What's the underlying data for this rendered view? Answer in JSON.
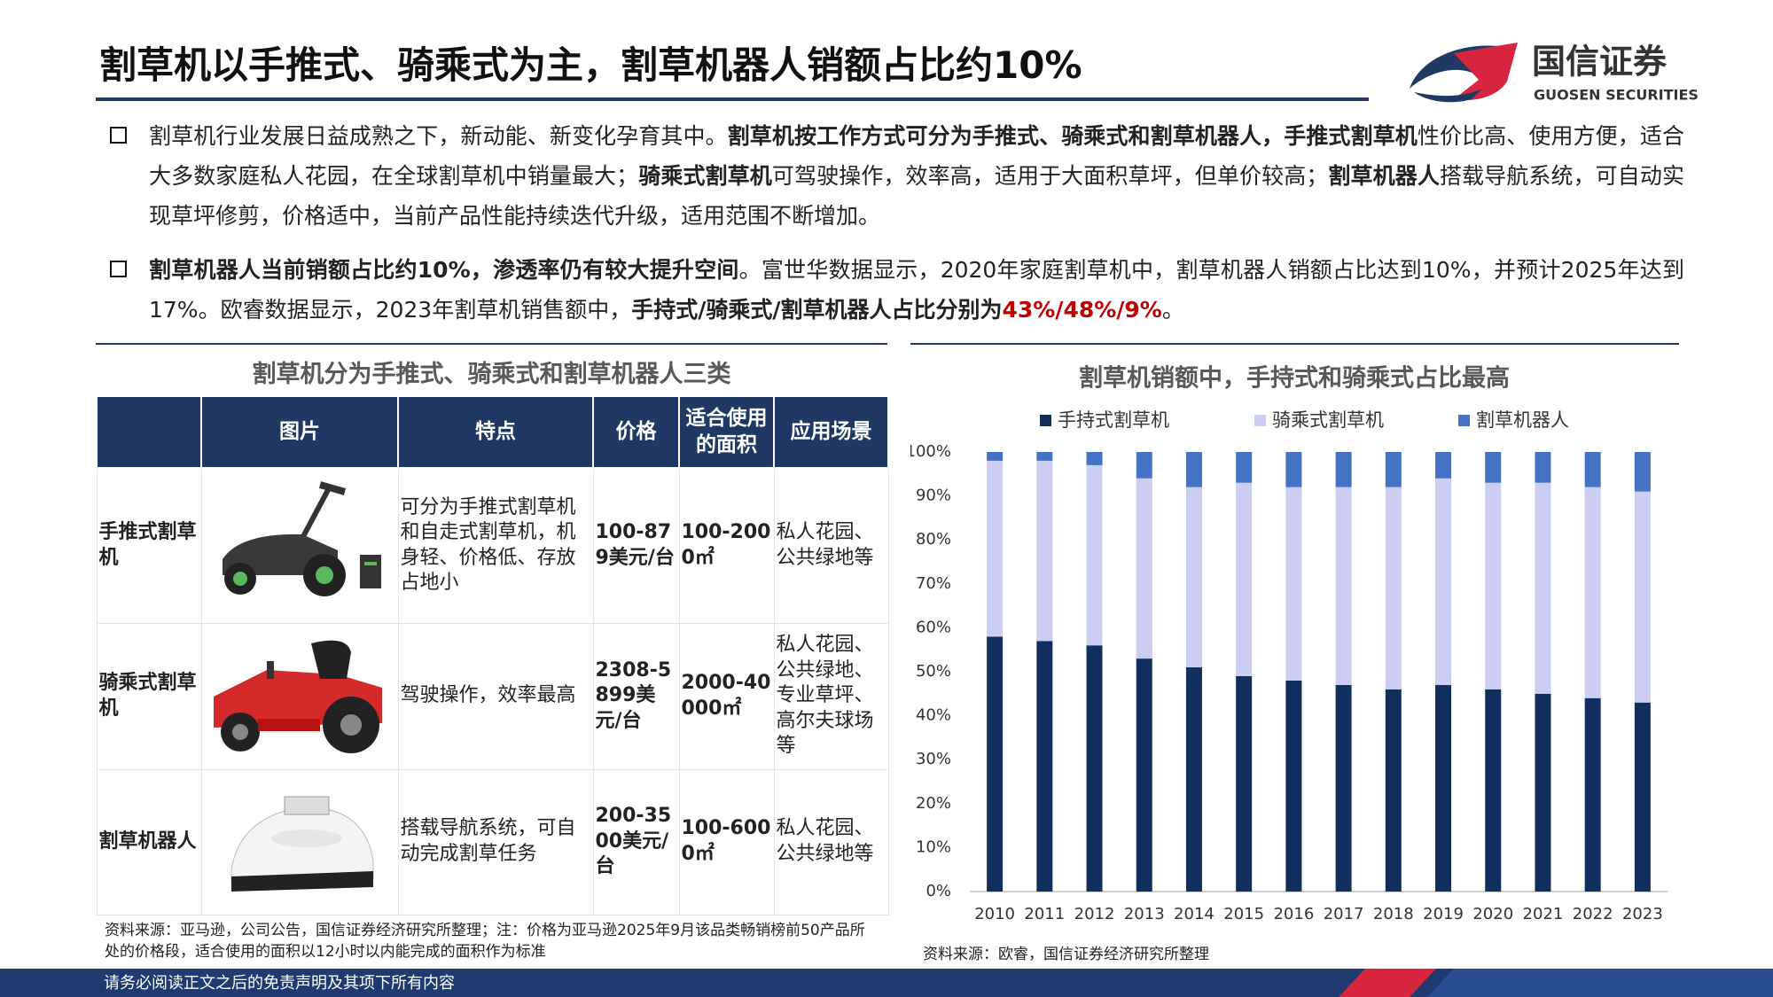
{
  "header": {
    "title": "割草机以手推式、骑乘式为主，割草机器人销额占比约10%",
    "logo_cn": "国信证券",
    "logo_en": "GUOSEN SECURITIES"
  },
  "bullets": [
    [
      {
        "text": "割草机行业发展日益成熟之下，新动能、新变化孕育其中。",
        "bold": false
      },
      {
        "text": "割草机按工作方式可分为手推式、骑乘式和割草机器人，手推式割草机",
        "bold": true
      },
      {
        "text": "性价比高、使用方便，适合大多数家庭私人花园，在全球割草机中销量最大；",
        "bold": false
      },
      {
        "text": "骑乘式割草机",
        "bold": true
      },
      {
        "text": "可驾驶操作，效率高，适用于大面积草坪，但单价较高；",
        "bold": false
      },
      {
        "text": "割草机器人",
        "bold": true
      },
      {
        "text": "搭载导航系统，可自动实现草坪修剪，价格适中，当前产品性能持续迭代升级，适用范围不断增加。",
        "bold": false
      }
    ],
    [
      {
        "text": "割草机器人当前销额占比约10%，渗透率仍有较大提升空间",
        "bold": true
      },
      {
        "text": "。富世华数据显示，2020年家庭割草机中，割草机器人销额占比达到10%，并预计2025年达到17%。欧睿数据显示，2023年割草机销售额中，",
        "bold": false
      },
      {
        "text": "手持式/骑乘式/割草机器人占比分别为",
        "bold": true
      },
      {
        "text": "43%/48%/9%",
        "bold": true,
        "color": "#c00000"
      },
      {
        "text": "。",
        "bold": false
      }
    ]
  ],
  "table": {
    "title": "割草机分为手推式、骑乘式和割草机器人三类",
    "columns": [
      "图片",
      "特点",
      "价格",
      "适合使用的面积",
      "应用场景"
    ],
    "rows": [
      [
        "手推式割草机",
        "可分为手推式割草机和自走式割草机，机身轻、价格低、存放占地小",
        "100-879美元/台",
        "100-2000㎡",
        "私人花园、公共绿地等"
      ],
      [
        "骑乘式割草机",
        "驾驶操作，效率最高",
        "2308-5899美元/台",
        "2000-40000㎡",
        "私人花园、公共绿地、专业草坪、高尔夫球场等"
      ],
      [
        "割草机器人",
        "搭载导航系统，可自动完成割草任务",
        "200-3500美元/台",
        "100-6000㎡",
        "私人花园、公共绿地等"
      ]
    ],
    "source": "资料来源：亚马逊，公司公告，国信证券经济研究所整理；注：价格为亚马逊2025年9月该品类畅销榜前50产品所处的价格段，适合使用的面积以12小时以内能完成的面积作为标准"
  },
  "chart_data": {
    "type": "stacked_bar",
    "title": "割草机销额中，手持式和骑乘式占比最高",
    "categories": [
      "2010",
      "2011",
      "2012",
      "2013",
      "2014",
      "2015",
      "2016",
      "2017",
      "2018",
      "2019",
      "2020",
      "2021",
      "2022",
      "2023"
    ],
    "series": [
      {
        "name": "手持式割草机",
        "color": "#102f5e",
        "values": [
          58,
          57,
          56,
          53,
          51,
          49,
          48,
          47,
          46,
          47,
          46,
          45,
          44,
          43
        ]
      },
      {
        "name": "骑乘式割草机",
        "color": "#cbcdf1",
        "values": [
          40,
          41,
          41,
          41,
          41,
          44,
          44,
          45,
          46,
          47,
          47,
          48,
          48,
          48
        ]
      },
      {
        "name": "割草机器人",
        "color": "#4472c4",
        "values": [
          2,
          2,
          3,
          6,
          8,
          7,
          8,
          8,
          8,
          6,
          7,
          7,
          8,
          9
        ]
      }
    ],
    "ylim": [
      0,
      100
    ],
    "yticks": [
      {
        "value": 0,
        "label": "0%"
      },
      {
        "value": 10,
        "label": "10%"
      },
      {
        "value": 20,
        "label": "20%"
      },
      {
        "value": 30,
        "label": "30%"
      },
      {
        "value": 40,
        "label": "40%"
      },
      {
        "value": 50,
        "label": "50%"
      },
      {
        "value": 60,
        "label": "60%"
      },
      {
        "value": 70,
        "label": "70%"
      },
      {
        "value": 80,
        "label": "80%"
      },
      {
        "value": 90,
        "label": "90%"
      },
      {
        "value": 100,
        "label": "100%"
      }
    ],
    "legend_position": "top",
    "source": "资料来源：欧睿，国信证券经济研究所整理"
  },
  "footer": {
    "disclaimer": "请务必阅读正文之后的免责声明及其项下所有内容"
  }
}
